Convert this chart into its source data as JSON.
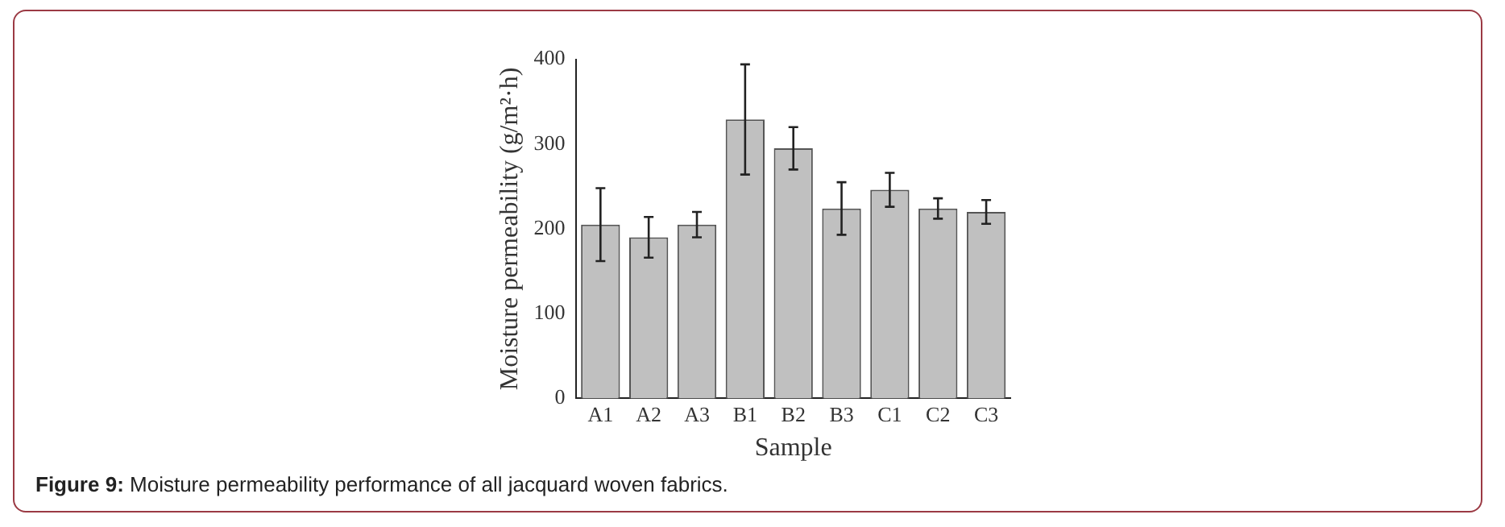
{
  "chart_data": {
    "type": "bar",
    "xlabel": "Sample",
    "ylabel": "Moisture permeability (g/m²·h)",
    "categories": [
      "A1",
      "A2",
      "A3",
      "B1",
      "B2",
      "B3",
      "C1",
      "C2",
      "C3"
    ],
    "values": [
      205,
      190,
      205,
      329,
      295,
      224,
      246,
      224,
      220
    ],
    "errors": [
      43,
      24,
      15,
      65,
      25,
      31,
      20,
      12,
      14
    ],
    "color": "#c0c0c0",
    "ylim": [
      0,
      400
    ],
    "yticks": [
      0,
      100,
      200,
      300,
      400
    ],
    "grid": false,
    "legend": false,
    "annotations": [
      "Figure 9: Moisture permeability performance of all jacquard woven fabrics."
    ]
  }
}
